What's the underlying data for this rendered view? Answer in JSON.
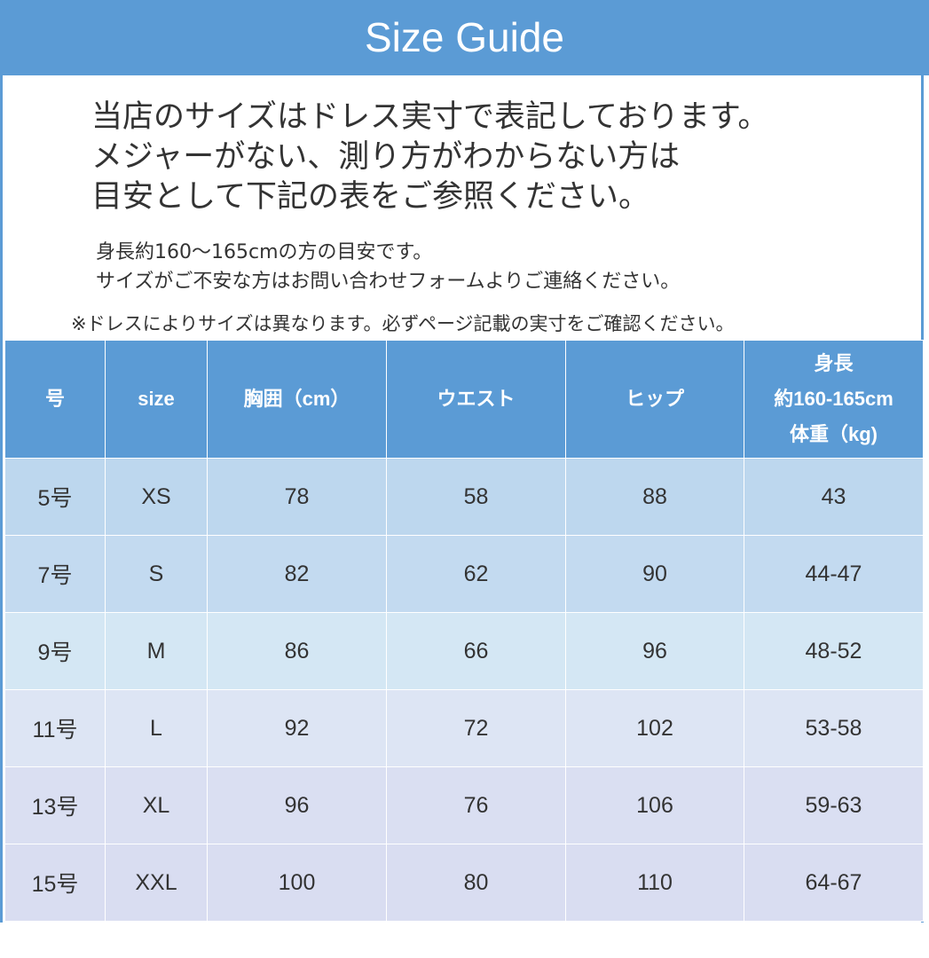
{
  "header": {
    "title": "Size Guide"
  },
  "intro": [
    "当店のサイズはドレス実寸で表記しております。",
    "メジャーがない、測り方がわからない方は",
    "目安として下記の表をご参照ください。"
  ],
  "notes": [
    "身長約160〜165cmの方の目安です。",
    "サイズがご不安な方はお問い合わせフォームよりご連絡ください。"
  ],
  "caution": "※ドレスによりサイズは異なります。必ずページ記載の実寸をご確認ください。",
  "table": {
    "header": [
      "号",
      "size",
      "胸囲（cm）",
      "ウエスト",
      "ヒップ",
      [
        "身長",
        "約160-165cm",
        "体重（kg)"
      ]
    ],
    "rows": [
      [
        "5号",
        "XS",
        "78",
        "58",
        "88",
        "43"
      ],
      [
        "7号",
        "S",
        "82",
        "62",
        "90",
        "44-47"
      ],
      [
        "9号",
        "M",
        "86",
        "66",
        "96",
        "48-52"
      ],
      [
        "11号",
        "L",
        "92",
        "72",
        "102",
        "53-58"
      ],
      [
        "13号",
        "XL",
        "96",
        "76",
        "106",
        "59-63"
      ],
      [
        "15号",
        "XXL",
        "100",
        "80",
        "110",
        "64-67"
      ]
    ]
  }
}
